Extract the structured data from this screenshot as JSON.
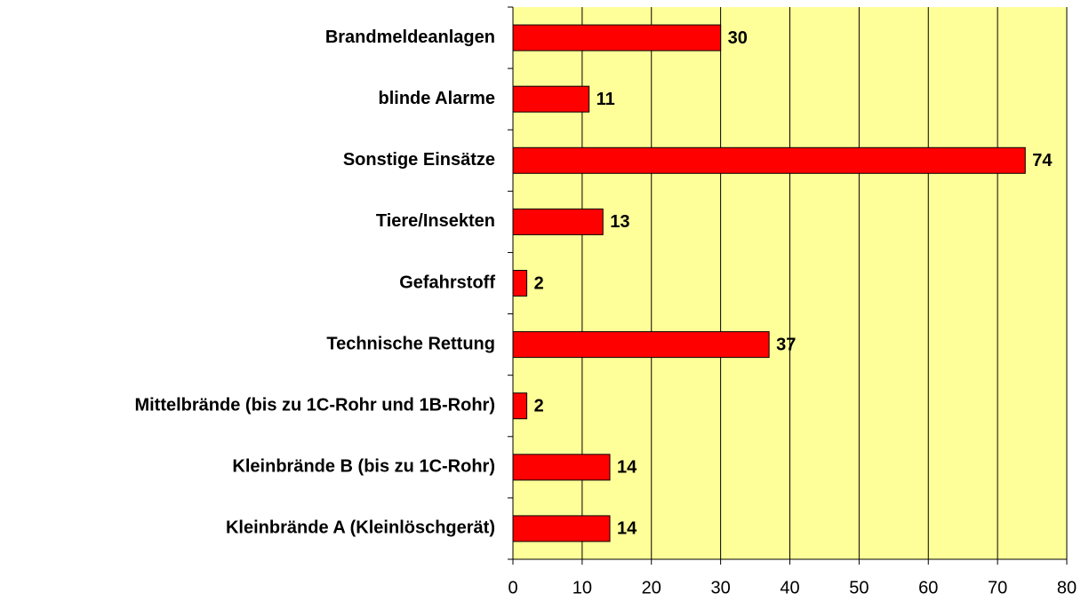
{
  "chart_data": {
    "type": "bar",
    "orientation": "horizontal",
    "categories": [
      "Brandmeldeanlagen",
      "blinde Alarme",
      "Sonstige Einsätze",
      "Tiere/Insekten",
      "Gefahrstoff",
      "Technische Rettung",
      "Mittelbrände (bis zu 1C-Rohr und 1B-Rohr)",
      "Kleinbrände B (bis zu 1C-Rohr)",
      "Kleinbrände A (Kleinlöschgerät)"
    ],
    "values": [
      30,
      11,
      74,
      13,
      2,
      37,
      2,
      14,
      14
    ],
    "color": "#ff0000",
    "background": "#ffff99",
    "xlim": [
      0,
      80
    ],
    "xticks": [
      0,
      10,
      20,
      30,
      40,
      50,
      60,
      70,
      80
    ],
    "grid": true
  }
}
